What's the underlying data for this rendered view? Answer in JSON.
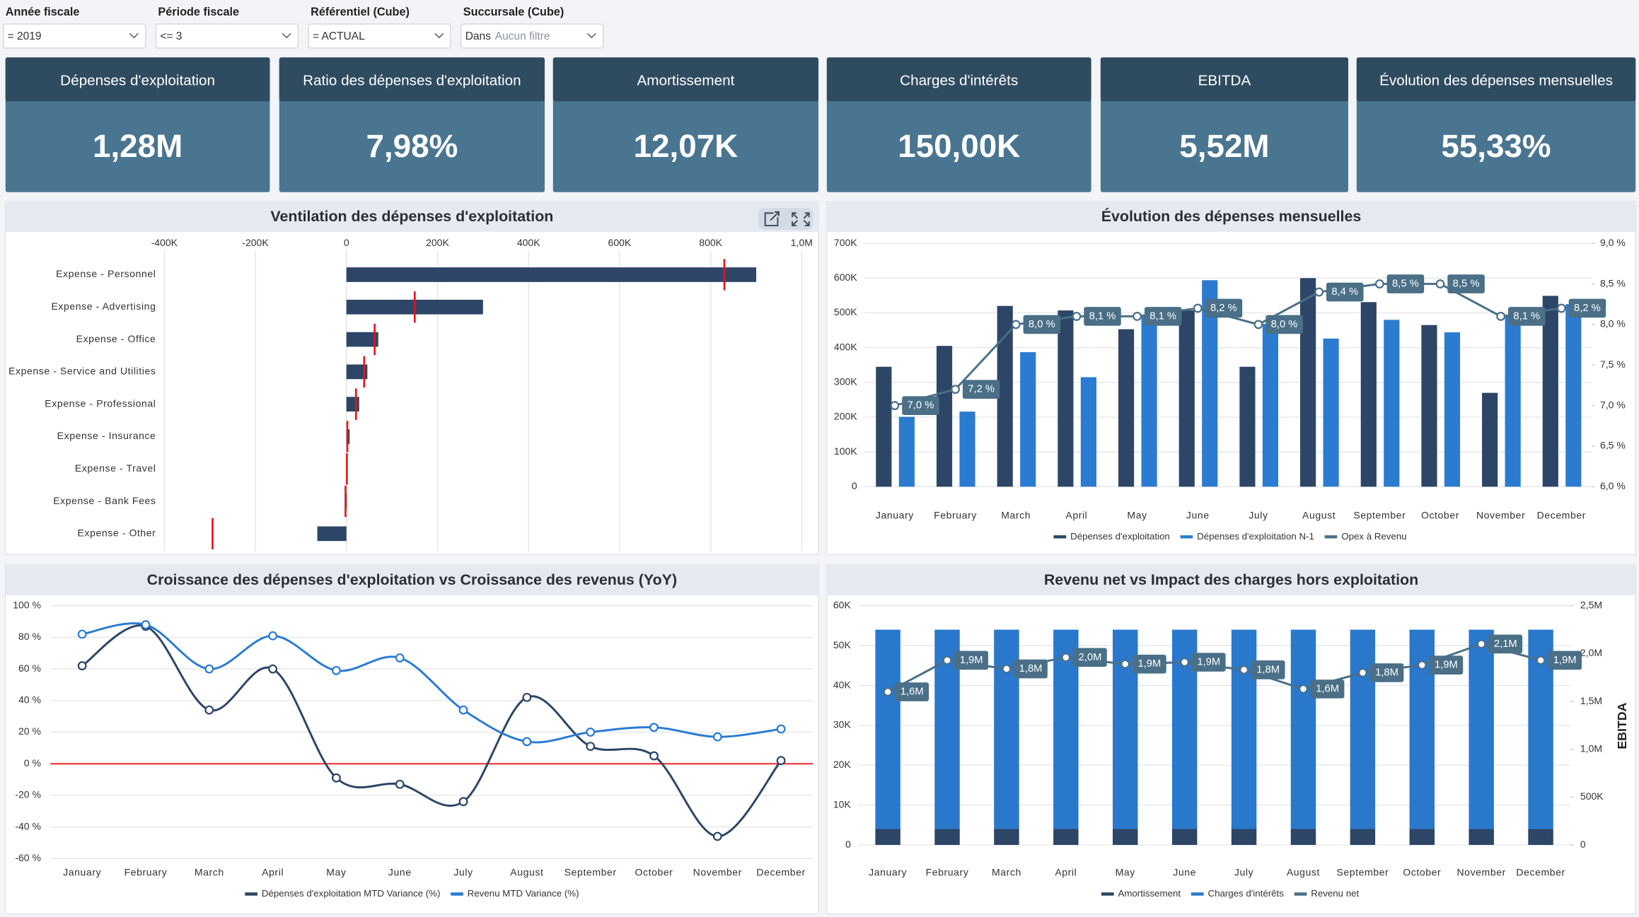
{
  "filters": [
    {
      "label": "Année fiscale",
      "value": "= 2019"
    },
    {
      "label": "Période fiscale",
      "value": "<= 3"
    },
    {
      "label": "Référentiel (Cube)",
      "value": "= ACTUAL"
    },
    {
      "label": "Succursale (Cube)",
      "value": "Dans",
      "placeholder": "Aucun filtre"
    }
  ],
  "kpis": [
    {
      "title": "Dépenses d'exploitation",
      "value": "1,28M"
    },
    {
      "title": "Ratio des dépenses d'exploitation",
      "value": "7,98%"
    },
    {
      "title": "Amortissement",
      "value": "12,07K"
    },
    {
      "title": "Charges d'intérêts",
      "value": "150,00K"
    },
    {
      "title": "EBITDA",
      "value": "5,52M"
    },
    {
      "title": "Évolution des dépenses mensuelles",
      "value": "55,33%"
    }
  ],
  "chart_data": [
    {
      "type": "hbar",
      "title": "Ventilation des dépenses d'exploitation",
      "categories": [
        "Expense - Personnel",
        "Expense - Advertising",
        "Expense - Office",
        "Expense - Service and Utilities",
        "Expense - Professional",
        "Expense - Insurance",
        "Expense - Travel",
        "Expense - Bank Fees",
        "Expense - Other"
      ],
      "values": [
        900000,
        300000,
        70000,
        46000,
        28000,
        7000,
        2000,
        1000,
        -64000
      ],
      "markers": [
        830000,
        150000,
        62000,
        39000,
        21000,
        2000,
        1000,
        -2000,
        -294000
      ],
      "color": "#2d4566",
      "marker_color": "#e0161b",
      "xlim": [
        -400000,
        1000000
      ],
      "xticks": [
        {
          "value": -400000,
          "label": "-400K"
        },
        {
          "value": -200000,
          "label": "-200K"
        },
        0,
        {
          "value": 200000,
          "label": "200K"
        },
        {
          "value": 400000,
          "label": "400K"
        },
        {
          "value": 600000,
          "label": "600K"
        },
        {
          "value": 800000,
          "label": "800K"
        },
        {
          "value": 1000000,
          "label": "1,0M"
        }
      ],
      "grid": true
    },
    {
      "type": "combo",
      "title": "Évolution des dépenses mensuelles",
      "categories": [
        "January",
        "February",
        "March",
        "April",
        "May",
        "June",
        "July",
        "August",
        "September",
        "October",
        "November",
        "December"
      ],
      "series": [
        {
          "name": "Dépenses d'exploitation",
          "type": "bar",
          "color": "#2d4566",
          "values": [
            345000,
            405000,
            520000,
            507000,
            453000,
            507000,
            345000,
            600000,
            531000,
            465000,
            270000,
            549000
          ]
        },
        {
          "name": "Dépenses d'exploitation N-1",
          "type": "bar",
          "color": "#2b7bd0",
          "values": [
            201000,
            216000,
            387000,
            315000,
            495000,
            594000,
            468000,
            426000,
            480000,
            444000,
            495000,
            525000
          ]
        },
        {
          "name": "Opex à Revenu",
          "type": "line",
          "axis": "y2",
          "color": "#4a6f87",
          "values": [
            7.0,
            7.2,
            8.0,
            8.1,
            8.1,
            8.2,
            8.0,
            8.4,
            8.5,
            8.5,
            8.1,
            8.2
          ],
          "value_labels": [
            "7,0 %",
            "7,2 %",
            "8,0 %",
            "8,1 %",
            "8,1 %",
            "8,2 %",
            "8,0 %",
            "8,4 %",
            "8,5 %",
            "8,5 %",
            "8,1 %",
            "8,2 %"
          ]
        }
      ],
      "ylim": [
        0,
        700000
      ],
      "yticks": [
        0,
        {
          "value": 100000,
          "label": "100K"
        },
        {
          "value": 200000,
          "label": "200K"
        },
        {
          "value": 300000,
          "label": "300K"
        },
        {
          "value": 400000,
          "label": "400K"
        },
        {
          "value": 500000,
          "label": "500K"
        },
        {
          "value": 600000,
          "label": "600K"
        },
        {
          "value": 700000,
          "label": "700K"
        }
      ],
      "y2lim": [
        6.0,
        9.0
      ],
      "y2ticks": [
        {
          "value": 6.0,
          "label": "6,0 %"
        },
        {
          "value": 6.5,
          "label": "6,5 %"
        },
        {
          "value": 7.0,
          "label": "7,0 %"
        },
        {
          "value": 7.5,
          "label": "7,5 %"
        },
        {
          "value": 8.0,
          "label": "8,0 %"
        },
        {
          "value": 8.5,
          "label": "8,5 %"
        },
        {
          "value": 9.0,
          "label": "9,0 %"
        }
      ],
      "grid": true
    },
    {
      "type": "line",
      "title": "Croissance des dépenses d'exploitation vs Croissance des revenus (YoY)",
      "categories": [
        "January",
        "February",
        "March",
        "April",
        "May",
        "June",
        "July",
        "August",
        "September",
        "October",
        "November",
        "December"
      ],
      "series": [
        {
          "name": "Dépenses d'exploitation MTD Variance (%)",
          "color": "#2d4566",
          "values": [
            62,
            87,
            34,
            60,
            -9,
            -13,
            -24,
            42,
            11,
            5,
            -46,
            2
          ]
        },
        {
          "name": "Revenu MTD Variance (%)",
          "color": "#2b7bd0",
          "values": [
            82,
            88,
            60,
            81,
            59,
            67,
            34,
            14,
            20,
            23,
            17,
            22
          ]
        }
      ],
      "ylim": [
        -60,
        100
      ],
      "yticks": [
        {
          "value": -60,
          "label": "-60 %"
        },
        {
          "value": -40,
          "label": "-40 %"
        },
        {
          "value": -20,
          "label": "-20 %"
        },
        {
          "value": 0,
          "label": "0 %"
        },
        {
          "value": 20,
          "label": "20 %"
        },
        {
          "value": 40,
          "label": "40 %"
        },
        {
          "value": 60,
          "label": "60 %"
        },
        {
          "value": 80,
          "label": "80 %"
        },
        {
          "value": 100,
          "label": "100 %"
        }
      ],
      "zero_line_color": "#ee3b3b",
      "grid": true
    },
    {
      "type": "stacked_combo",
      "title": "Revenu net vs Impact des charges hors exploitation",
      "categories": [
        "January",
        "February",
        "March",
        "April",
        "May",
        "June",
        "July",
        "August",
        "September",
        "October",
        "November",
        "December"
      ],
      "series": [
        {
          "name": "Amortissement",
          "type": "bar",
          "color": "#2d4566",
          "values": [
            4000,
            4000,
            4000,
            4000,
            4000,
            4000,
            4000,
            4000,
            4000,
            4000,
            4000,
            4000
          ]
        },
        {
          "name": "Charges d'intérêts",
          "type": "bar",
          "color": "#2a78cc",
          "values": [
            50000,
            50000,
            50000,
            50000,
            50000,
            50000,
            50000,
            50000,
            50000,
            50000,
            50000,
            50000
          ]
        },
        {
          "name": "Revenu net",
          "type": "line",
          "axis": "y2",
          "color": "#4a6f87",
          "values": [
            1600000,
            1930000,
            1840000,
            1960000,
            1890000,
            1910000,
            1830000,
            1630000,
            1800000,
            1880000,
            2100000,
            1930000
          ],
          "value_labels": [
            "1,6M",
            "1,9M",
            "1,8M",
            "2,0M",
            "1,9M",
            "1,9M",
            "1,8M",
            "1,6M",
            "1,8M",
            "1,9M",
            "2,1M",
            "1,9M"
          ]
        }
      ],
      "ylim": [
        0,
        60000
      ],
      "yticks": [
        0,
        {
          "value": 10000,
          "label": "10K"
        },
        {
          "value": 20000,
          "label": "20K"
        },
        {
          "value": 30000,
          "label": "30K"
        },
        {
          "value": 40000,
          "label": "40K"
        },
        {
          "value": 50000,
          "label": "50K"
        },
        {
          "value": 60000,
          "label": "60K"
        }
      ],
      "y2label": "EBITDA",
      "y2lim": [
        0,
        2500000
      ],
      "y2ticks": [
        0,
        {
          "value": 500000,
          "label": "500K"
        },
        {
          "value": 1000000,
          "label": "1,0M"
        },
        {
          "value": 1500000,
          "label": "1,5M"
        },
        {
          "value": 2000000,
          "label": "2,0M"
        },
        {
          "value": 2500000,
          "label": "2,5M"
        }
      ],
      "grid": true
    }
  ]
}
